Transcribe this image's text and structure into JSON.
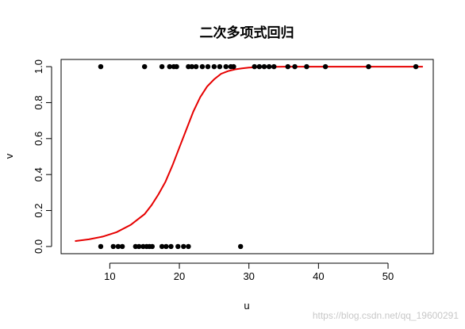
{
  "chart_data": {
    "type": "scatter",
    "title": "二次多项式回归",
    "xlabel": "u",
    "ylabel": "v",
    "xlim": [
      3,
      56.5
    ],
    "ylim": [
      -0.04,
      1.04
    ],
    "x_ticks": [
      10,
      20,
      30,
      40,
      50
    ],
    "y_ticks": [
      0.0,
      0.2,
      0.4,
      0.6,
      0.8,
      1.0
    ],
    "grid": false,
    "legend": "none",
    "points_y1": [
      8.7,
      15,
      17.5,
      18.6,
      19.2,
      19.6,
      21.3,
      21.8,
      22.4,
      23.3,
      24.1,
      25,
      25.8,
      26.7,
      27.4,
      27.8,
      30.8,
      31.5,
      32.2,
      32.9,
      33.6,
      35.6,
      36.6,
      38.3,
      41,
      47.2,
      54
    ],
    "points_y0": [
      8.7,
      10.5,
      11.2,
      11.8,
      13.7,
      14.2,
      14.8,
      15.3,
      15.7,
      16.1,
      17.5,
      18.1,
      18.8,
      19.8,
      20.6,
      21.3,
      28.8
    ],
    "curve": {
      "color": "#e60000",
      "x": [
        5,
        7,
        9,
        11,
        13,
        15,
        16,
        17,
        18,
        19,
        20,
        21,
        22,
        23,
        24,
        25,
        26,
        27,
        28,
        29,
        30,
        32,
        35,
        40,
        45,
        50,
        55
      ],
      "y": [
        0.03,
        0.04,
        0.055,
        0.08,
        0.12,
        0.18,
        0.23,
        0.29,
        0.36,
        0.45,
        0.55,
        0.65,
        0.75,
        0.83,
        0.89,
        0.93,
        0.96,
        0.975,
        0.985,
        0.99,
        0.995,
        0.998,
        1.0,
        1.0,
        1.0,
        1.0,
        1.0
      ]
    },
    "point_color": "#000000"
  },
  "watermark": "https://blog.csdn.net/qq_19600291"
}
